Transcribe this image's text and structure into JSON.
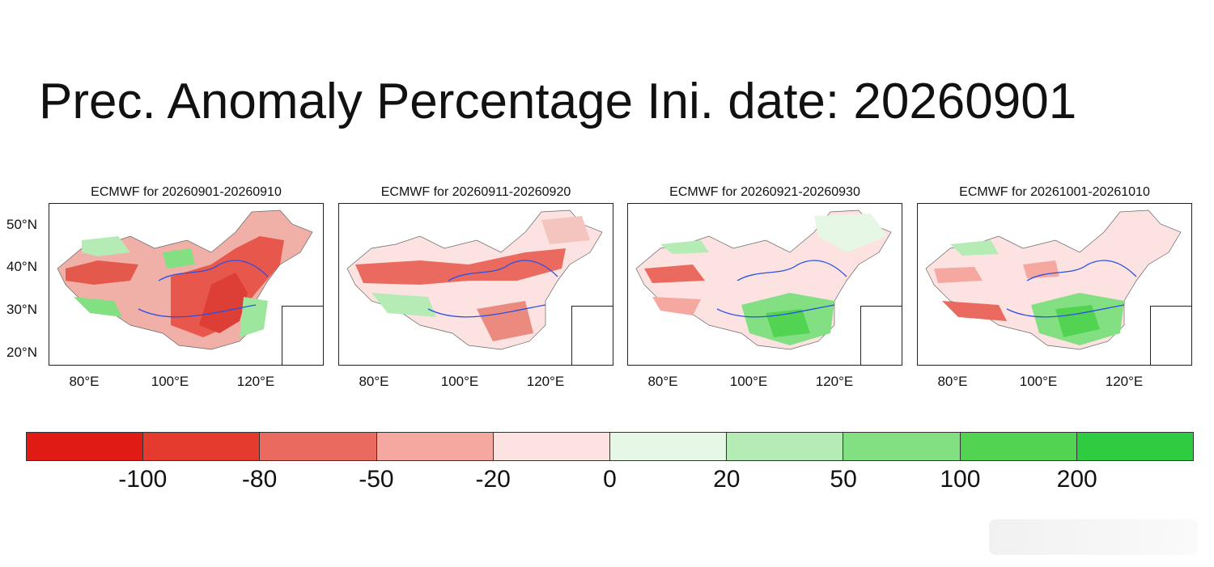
{
  "title": "Prec. Anomaly Percentage Ini. date: 20260901",
  "panels": [
    {
      "title": "ECMWF for 20260901-20260910"
    },
    {
      "title": "ECMWF for 20260911-20260920"
    },
    {
      "title": "ECMWF for 20260921-20260930"
    },
    {
      "title": "ECMWF for 20261001-20261010"
    }
  ],
  "axes": {
    "lat_labels": [
      "50°N",
      "40°N",
      "30°N",
      "20°N"
    ],
    "lon_labels": [
      "80°E",
      "100°E",
      "120°E"
    ]
  },
  "colorbar": {
    "labels": [
      "-100",
      "-80",
      "-50",
      "-20",
      "0",
      "20",
      "50",
      "100",
      "200"
    ],
    "colors": [
      "#e01a14",
      "#e53b2f",
      "#eb6a5f",
      "#f4a8a0",
      "#fde2e2",
      "#e6f7e6",
      "#b5ebb5",
      "#82e082",
      "#52d452",
      "#2ecc40"
    ]
  },
  "map_style": {
    "river_color": "#2b4fe0",
    "boundary_color": "#555555",
    "coast_color": "#b070d0"
  }
}
